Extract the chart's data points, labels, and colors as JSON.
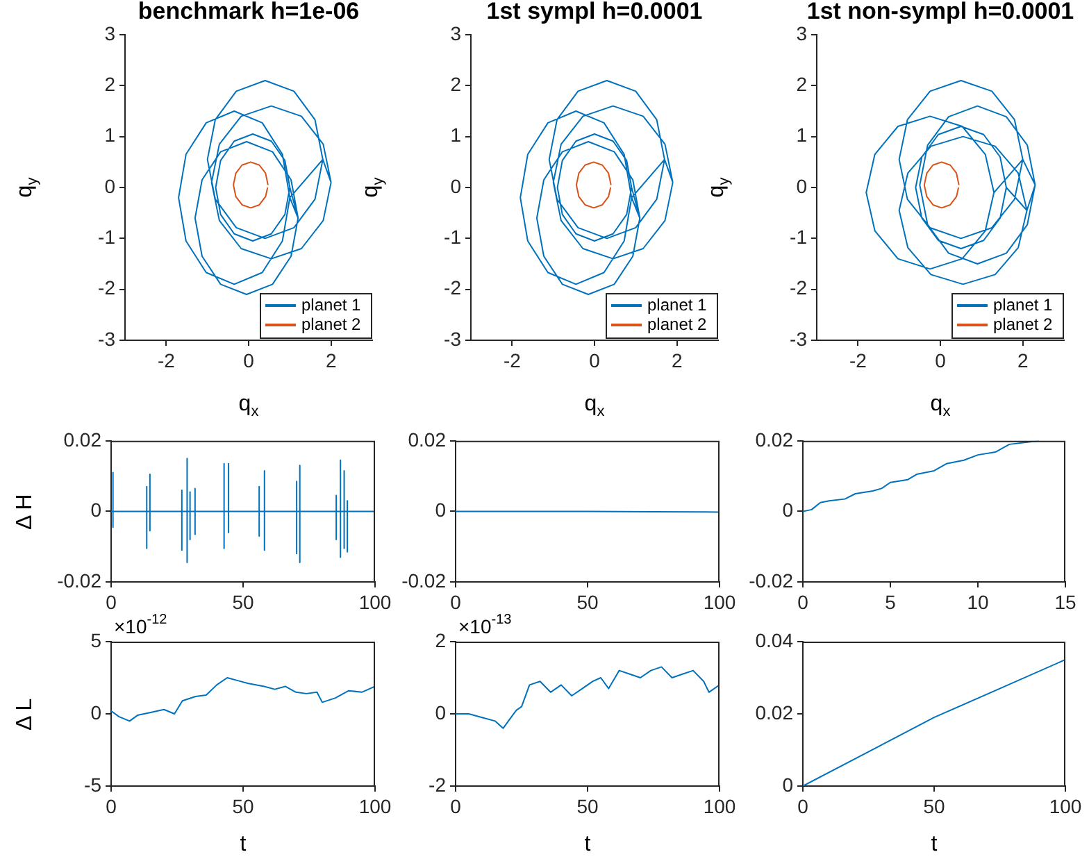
{
  "chart_data": [
    {
      "type": "line",
      "title": "benchmark h=1e-06",
      "xlabel": "q$_{x}$",
      "ylabel": "q$_{y}$",
      "xlim": [
        -3,
        3
      ],
      "xticks": [
        -2,
        0,
        2
      ],
      "ylim": [
        -3,
        3
      ],
      "yticks": [
        -3,
        -2,
        -1,
        0,
        1,
        2,
        3
      ],
      "legend": "bottom right",
      "series": [
        {
          "name": "planet 1",
          "color": "#0072bd",
          "x": [
            2.0,
            1.81,
            1.28,
            0.55,
            -0.18,
            -0.71,
            -0.9,
            -0.71,
            -0.18,
            0.55,
            1.28,
            1.81,
            2.0,
            1.8,
            1.61,
            1.1,
            0.4,
            -0.3,
            -0.81,
            -1.0,
            -0.81,
            -0.3,
            0.4,
            1.1,
            1.61,
            1.8,
            1.0,
            0.82,
            0.33,
            -0.35,
            -1.03,
            -1.52,
            -1.7,
            -1.52,
            -1.03,
            -0.35,
            0.33,
            0.82,
            1.0,
            1.2,
            1.03,
            0.58,
            -0.05,
            -0.68,
            -1.13,
            -1.3,
            -1.13,
            -0.68,
            -0.05,
            0.58,
            1.03,
            1.2,
            1.0,
            0.88,
            0.55,
            0.1,
            -0.35,
            -0.68,
            -0.8,
            -0.68,
            -0.35,
            0.1,
            0.55,
            0.88,
            1.0
          ],
          "values": [
            0.1,
            0.85,
            1.4,
            1.6,
            1.4,
            0.85,
            0.1,
            -0.65,
            -1.2,
            -1.4,
            -1.2,
            -0.65,
            0.1,
            0.55,
            1.33,
            1.89,
            2.1,
            1.89,
            1.33,
            0.55,
            -0.23,
            -0.79,
            -1.0,
            -0.79,
            -0.23,
            0.55,
            -0.2,
            0.65,
            1.27,
            1.5,
            1.27,
            0.65,
            -0.2,
            -1.05,
            -1.67,
            -1.9,
            -1.67,
            -1.05,
            -0.2,
            -0.6,
            0.15,
            0.7,
            0.9,
            0.7,
            0.15,
            -0.6,
            -1.35,
            -1.9,
            -2.1,
            -1.9,
            -1.35,
            -0.6,
            0,
            0.53,
            0.91,
            1.05,
            0.91,
            0.53,
            0,
            -0.53,
            -0.91,
            -1.05,
            -0.91,
            -0.53,
            0
          ]
        },
        {
          "name": "planet 2",
          "color": "#d95319",
          "x": [
            0.47,
            0.41,
            0.26,
            0.05,
            -0.16,
            -0.31,
            -0.37,
            -0.31,
            -0.16,
            0.05,
            0.26,
            0.41,
            0.46
          ],
          "values": [
            0.05,
            0.28,
            0.44,
            0.5,
            0.44,
            0.28,
            0.05,
            -0.18,
            -0.34,
            -0.4,
            -0.34,
            -0.18,
            0.0
          ]
        }
      ]
    },
    {
      "type": "line",
      "title": "1st sympl h=0.0001",
      "xlabel": "q$_{x}$",
      "ylabel": "q$_{y}$",
      "xlim": [
        -3,
        3
      ],
      "xticks": [
        -2,
        0,
        2
      ],
      "ylim": [
        -3,
        3
      ],
      "yticks": [
        -3,
        -2,
        -1,
        0,
        1,
        2,
        3
      ],
      "legend": "bottom right",
      "series": [
        {
          "name": "planet 1",
          "color": "#0072bd",
          "x": [
            1.9,
            1.71,
            1.18,
            0.45,
            -0.28,
            -0.81,
            -1.0,
            -0.81,
            -0.28,
            0.45,
            1.18,
            1.71,
            1.9,
            1.7,
            1.51,
            1.0,
            0.3,
            -0.4,
            -0.91,
            -1.1,
            -0.91,
            -0.4,
            0.3,
            1.0,
            1.51,
            1.7,
            0.9,
            0.72,
            0.23,
            -0.45,
            -1.13,
            -1.62,
            -1.8,
            -1.62,
            -1.13,
            -0.45,
            0.23,
            0.72,
            0.9,
            1.1,
            0.93,
            0.48,
            -0.15,
            -0.78,
            -1.23,
            -1.4,
            -1.23,
            -0.78,
            -0.15,
            0.48,
            0.93,
            1.1,
            0.9,
            0.78,
            0.45,
            0,
            -0.45,
            -0.78,
            -0.9,
            -0.78,
            -0.45,
            0,
            0.45,
            0.78,
            0.9
          ],
          "values": [
            0.1,
            0.85,
            1.4,
            1.6,
            1.4,
            0.85,
            0.1,
            -0.65,
            -1.2,
            -1.4,
            -1.2,
            -0.65,
            0.1,
            0.55,
            1.33,
            1.89,
            2.1,
            1.89,
            1.33,
            0.55,
            -0.23,
            -0.79,
            -1.0,
            -0.79,
            -0.23,
            0.55,
            -0.2,
            0.65,
            1.27,
            1.5,
            1.27,
            0.65,
            -0.2,
            -1.05,
            -1.67,
            -1.9,
            -1.67,
            -1.05,
            -0.2,
            -0.6,
            0.15,
            0.7,
            0.9,
            0.7,
            0.15,
            -0.6,
            -1.35,
            -1.9,
            -2.1,
            -1.9,
            -1.35,
            -0.6,
            0,
            0.53,
            0.91,
            1.05,
            0.91,
            0.53,
            0,
            -0.53,
            -0.91,
            -1.05,
            -0.91,
            -0.53,
            0
          ]
        },
        {
          "name": "planet 2",
          "color": "#d95319",
          "x": [
            0.4,
            0.34,
            0.19,
            -0.02,
            -0.23,
            -0.38,
            -0.44,
            -0.38,
            -0.23,
            -0.02,
            0.19,
            0.34,
            0.39
          ],
          "values": [
            0.05,
            0.28,
            0.44,
            0.5,
            0.44,
            0.28,
            0.05,
            -0.18,
            -0.34,
            -0.4,
            -0.34,
            -0.18,
            0.0
          ]
        }
      ]
    },
    {
      "type": "line",
      "title": "1st non-sympl h=0.0001",
      "xlabel": "q$_{x}$",
      "ylabel": "q$_{y}$",
      "xlim": [
        -3,
        3
      ],
      "xticks": [
        -2,
        0,
        2
      ],
      "ylim": [
        -3,
        3
      ],
      "yticks": [
        -3,
        -2,
        -1,
        0,
        1,
        2,
        3
      ],
      "legend": "bottom right",
      "series": [
        {
          "name": "planet 1",
          "color": "#0072bd",
          "x": [
            1.3,
            1.09,
            0.53,
            -0.25,
            -1.03,
            -1.59,
            -1.8,
            -1.59,
            -1.03,
            -0.25,
            0.53,
            1.09,
            1.3,
            2.0,
            1.8,
            1.25,
            0.5,
            -0.25,
            -0.8,
            -1.0,
            -0.8,
            -0.25,
            0.5,
            1.25,
            1.8,
            2.0,
            2.3,
            2.11,
            1.6,
            0.9,
            0.2,
            -0.31,
            -0.5,
            -0.31,
            0.2,
            0.9,
            1.6,
            2.11,
            2.3,
            2.1,
            1.89,
            1.33,
            0.55,
            -0.23,
            -0.79,
            -1.0,
            -0.79,
            -0.23,
            0.55,
            1.33,
            1.89,
            2.1,
            1.6,
            1.45,
            1.05,
            0.5,
            -0.05,
            -0.45,
            -0.6,
            -0.45,
            -0.05,
            0.5,
            1.05,
            1.45,
            1.6
          ],
          "values": [
            -0.1,
            0.65,
            1.2,
            1.4,
            1.2,
            0.65,
            -0.1,
            -0.85,
            -1.4,
            -1.6,
            -1.4,
            -0.85,
            -0.1,
            0.55,
            1.33,
            1.89,
            2.1,
            1.89,
            1.33,
            0.55,
            -0.23,
            -0.79,
            -1.0,
            -0.79,
            -0.23,
            0.55,
            0.05,
            0.83,
            1.39,
            1.6,
            1.39,
            0.83,
            0.05,
            -0.73,
            -1.29,
            -1.5,
            -1.29,
            -0.73,
            0.05,
            -0.45,
            0.28,
            0.81,
            1.0,
            0.81,
            0.28,
            -0.45,
            -1.18,
            -1.71,
            -1.9,
            -1.71,
            -1.18,
            -0.45,
            0,
            0.6,
            1.04,
            1.2,
            1.04,
            0.6,
            0,
            -0.6,
            -1.04,
            -1.2,
            -1.04,
            -0.6,
            0
          ]
        },
        {
          "name": "planet 2",
          "color": "#d95319",
          "x": [
            0.45,
            0.39,
            0.24,
            0.03,
            -0.18,
            -0.33,
            -0.39,
            -0.33,
            -0.18,
            0.03,
            0.24,
            0.39,
            0.44
          ],
          "values": [
            0.05,
            0.28,
            0.44,
            0.5,
            0.44,
            0.28,
            0.05,
            -0.18,
            -0.34,
            -0.4,
            -0.34,
            -0.18,
            0.0
          ]
        }
      ]
    },
    {
      "type": "line",
      "ylabel": "Δ H",
      "xlim": [
        0,
        100
      ],
      "xticks": [
        0,
        50,
        100
      ],
      "ylim": [
        -0.02,
        0.02
      ],
      "yticks": [
        -0.02,
        0,
        0.02
      ],
      "series": [
        {
          "color": "#0072bd",
          "x": [
            0,
            0.7,
            0.7,
            0.7,
            0.7,
            13.5,
            13.5,
            13.5,
            13.5,
            14.7,
            14.7,
            14.7,
            14.7,
            26.8,
            26.8,
            26.8,
            26.8,
            28.8,
            28.8,
            28.8,
            28.8,
            29.9,
            29.9,
            29.9,
            29.9,
            31.8,
            31.8,
            31.8,
            31.8,
            42.8,
            42.8,
            42.8,
            42.8,
            44.5,
            44.5,
            44.5,
            44.5,
            56.1,
            56.1,
            56.1,
            56.1,
            58.1,
            58.1,
            58.1,
            58.1,
            70.3,
            70.3,
            70.3,
            70.3,
            71.5,
            71.5,
            71.5,
            71.5,
            85.3,
            85.3,
            85.3,
            85.3,
            86.9,
            86.9,
            86.9,
            86.9,
            88.3,
            88.3,
            88.3,
            88.3,
            89.5,
            89.5,
            89.5,
            89.5,
            100
          ],
          "values": [
            0,
            0,
            0.011,
            -0.0045,
            0,
            0,
            0.007,
            -0.0105,
            0,
            0,
            0.0105,
            -0.0055,
            0,
            0,
            0.006,
            -0.011,
            0,
            0,
            0.015,
            -0.0145,
            0,
            0,
            0.0055,
            -0.008,
            0,
            0,
            0.0065,
            -0.0065,
            0,
            0,
            0.0135,
            -0.0105,
            0,
            0,
            0.0135,
            -0.006,
            0,
            0,
            0.007,
            -0.007,
            0,
            0,
            0.0115,
            -0.011,
            0,
            0,
            0.0085,
            -0.012,
            0,
            0,
            0.013,
            -0.0145,
            0,
            0,
            0.0045,
            -0.008,
            0,
            0,
            0.0145,
            -0.013,
            0,
            0,
            0.0115,
            -0.0105,
            0,
            0,
            0.003,
            -0.0115,
            0,
            0
          ]
        }
      ]
    },
    {
      "type": "line",
      "xlim": [
        0,
        100
      ],
      "xticks": [
        0,
        50,
        100
      ],
      "ylim": [
        -0.02,
        0.02
      ],
      "yticks": [
        -0.02,
        0,
        0.02
      ],
      "series": [
        {
          "color": "#0072bd",
          "x": [
            0,
            25,
            50,
            75,
            100
          ],
          "values": [
            0,
            0,
            0,
            -0.0001,
            -0.0002
          ]
        }
      ]
    },
    {
      "type": "line",
      "xlim": [
        0,
        15
      ],
      "xticks": [
        0,
        5,
        10,
        15
      ],
      "ylim": [
        -0.02,
        0.02
      ],
      "yticks": [
        -0.02,
        0,
        0.02
      ],
      "series": [
        {
          "color": "#0072bd",
          "x": [
            0,
            0.5,
            1,
            1.5,
            2.4,
            3,
            4,
            4.5,
            5,
            6,
            6.5,
            7.5,
            8.2,
            9.2,
            10,
            11,
            11.8,
            13.5
          ],
          "values": [
            0,
            0.0005,
            0.0025,
            0.003,
            0.0035,
            0.005,
            0.0058,
            0.0065,
            0.0082,
            0.009,
            0.0105,
            0.0115,
            0.0135,
            0.0145,
            0.016,
            0.0168,
            0.019,
            0.02
          ]
        }
      ]
    },
    {
      "type": "line",
      "xlabel": "t",
      "ylabel": "Δ L",
      "annotations": [
        "×10$^{-12}$"
      ],
      "xlim": [
        0,
        100
      ],
      "xticks": [
        0,
        50,
        100
      ],
      "ylim": [
        -5,
        5
      ],
      "yticks": [
        -5,
        0,
        5
      ],
      "series": [
        {
          "color": "#0072bd",
          "x": [
            0,
            3,
            7,
            10,
            15,
            20,
            24,
            27,
            32,
            36,
            40,
            44,
            48,
            52,
            58,
            62,
            66,
            70,
            74,
            78,
            80,
            85,
            90,
            95,
            100
          ],
          "values": [
            0.2,
            -0.2,
            -0.5,
            -0.1,
            0.1,
            0.3,
            0,
            0.9,
            1.2,
            1.3,
            2,
            2.5,
            2.3,
            2.1,
            1.9,
            1.7,
            1.9,
            1.5,
            1.4,
            1.5,
            0.8,
            1.1,
            1.6,
            1.5,
            1.9
          ]
        }
      ]
    },
    {
      "type": "line",
      "xlabel": "t",
      "annotations": [
        "×10$^{-13}$"
      ],
      "xlim": [
        0,
        100
      ],
      "xticks": [
        0,
        50,
        100
      ],
      "ylim": [
        -2,
        2
      ],
      "yticks": [
        -2,
        0,
        2
      ],
      "series": [
        {
          "color": "#0072bd",
          "x": [
            0,
            5,
            10,
            15,
            18,
            20,
            23,
            25,
            28,
            32,
            36,
            40,
            44,
            48,
            52,
            55,
            58,
            62,
            66,
            70,
            74,
            78,
            82,
            86,
            90,
            94,
            96,
            100
          ],
          "values": [
            0,
            0,
            -0.1,
            -0.2,
            -0.4,
            -0.2,
            0.1,
            0.2,
            0.8,
            0.9,
            0.6,
            0.8,
            0.5,
            0.7,
            0.9,
            1,
            0.7,
            1.2,
            1.1,
            1,
            1.2,
            1.3,
            1,
            1.1,
            1.2,
            0.9,
            0.6,
            0.8
          ]
        }
      ]
    },
    {
      "type": "line",
      "xlabel": "t",
      "xlim": [
        0,
        100
      ],
      "xticks": [
        0,
        50,
        100
      ],
      "ylim": [
        0,
        0.04
      ],
      "yticks": [
        0,
        0.02,
        0.04
      ],
      "series": [
        {
          "color": "#0072bd",
          "x": [
            0,
            25,
            50,
            75,
            100
          ],
          "values": [
            0,
            0.0095,
            0.019,
            0.027,
            0.035
          ]
        }
      ]
    }
  ]
}
